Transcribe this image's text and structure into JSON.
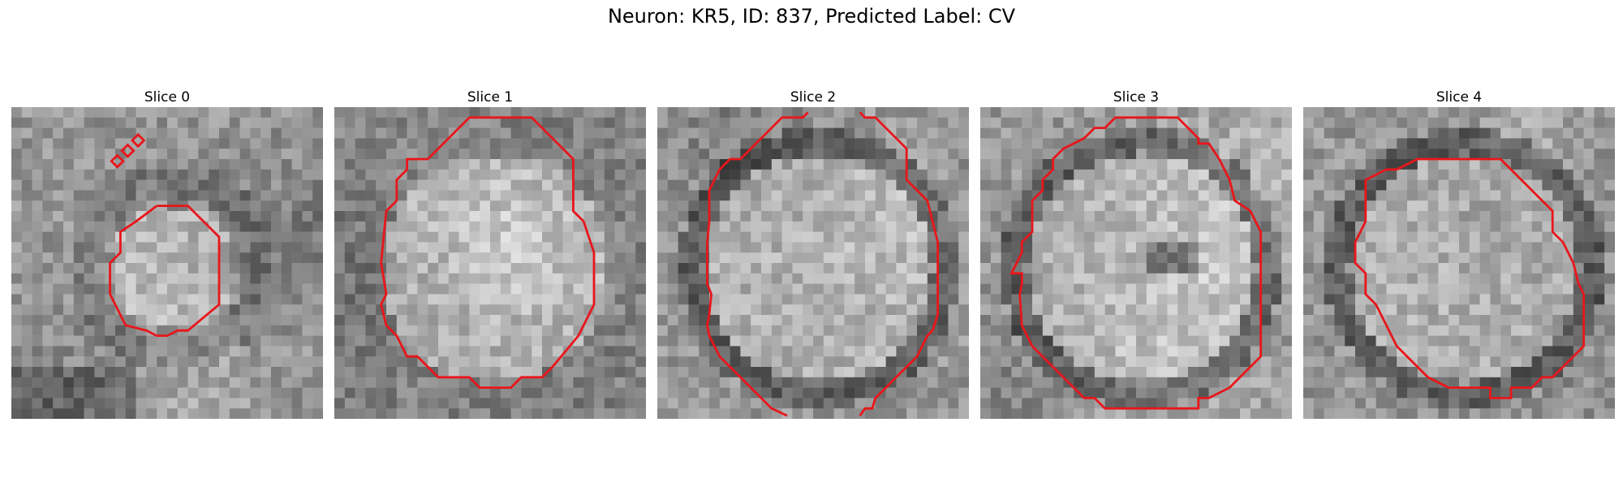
{
  "figure": {
    "title": "Neuron: KR5, ID: 837, Predicted Label: CV"
  },
  "colors": {
    "contour": "#e8161b",
    "cmap": "gray"
  },
  "panels": [
    {
      "title": "Slice 0",
      "texture_seed": 11,
      "pattern": "small-cell"
    },
    {
      "title": "Slice 1",
      "texture_seed": 23,
      "pattern": "large-cell"
    },
    {
      "title": "Slice 2",
      "texture_seed": 37,
      "pattern": "ring-cell"
    },
    {
      "title": "Slice 3",
      "texture_seed": 41,
      "pattern": "ring-cell-streak"
    },
    {
      "title": "Slice 4",
      "texture_seed": 59,
      "pattern": "ring-cell"
    }
  ]
}
